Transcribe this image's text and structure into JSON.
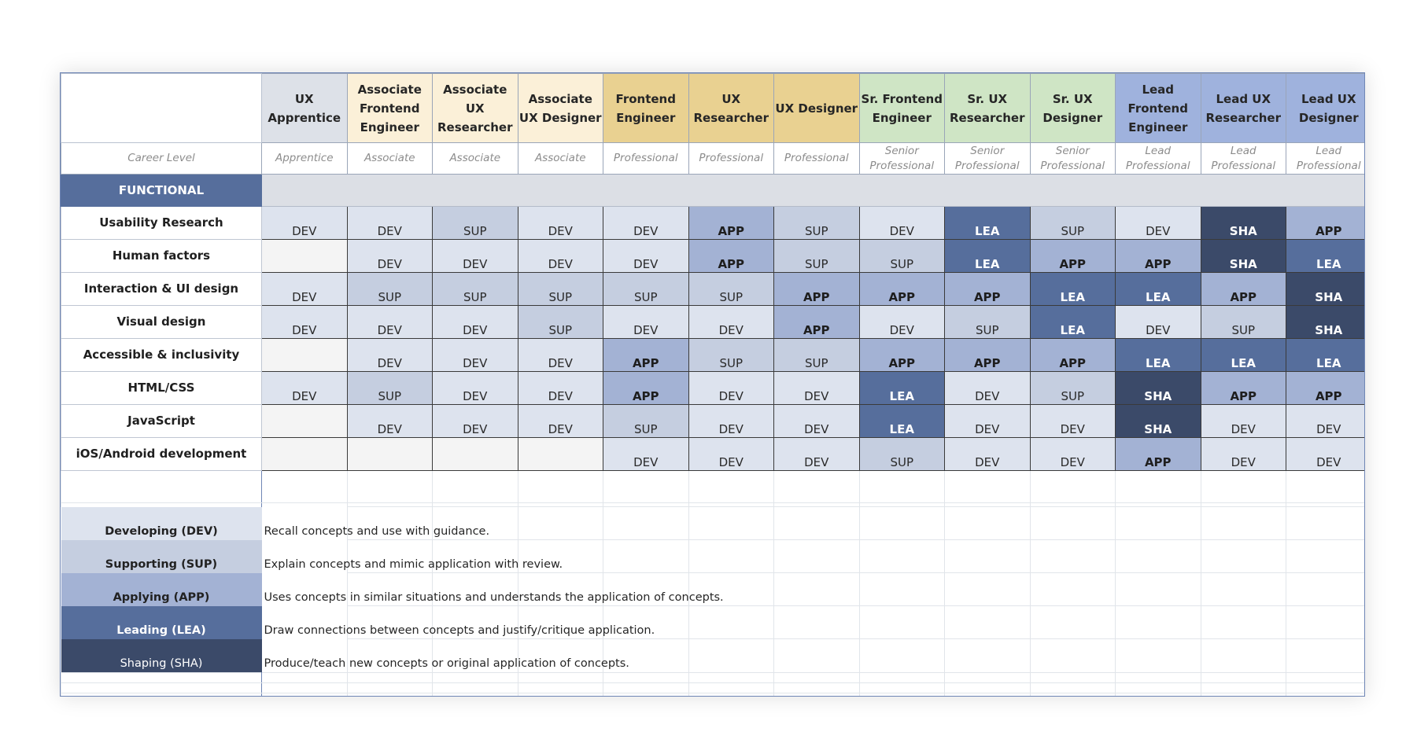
{
  "header": {
    "roles": [
      {
        "label": "UX Apprentice",
        "level": "Apprentice",
        "band": "app"
      },
      {
        "label": "Associate Frontend Engineer",
        "level": "Associate",
        "band": "ass"
      },
      {
        "label": "Associate UX Researcher",
        "level": "Associate",
        "band": "ass"
      },
      {
        "label": "Associate UX Designer",
        "level": "Associate",
        "band": "ass"
      },
      {
        "label": "Frontend Engineer",
        "level": "Professional",
        "band": "pro"
      },
      {
        "label": "UX Researcher",
        "level": "Professional",
        "band": "pro"
      },
      {
        "label": "UX Designer",
        "level": "Professional",
        "band": "pro"
      },
      {
        "label": "Sr. Frontend Engineer",
        "level": "Senior Professional",
        "band": "sen"
      },
      {
        "label": "Sr. UX Researcher",
        "level": "Senior Professional",
        "band": "sen"
      },
      {
        "label": "Sr. UX Designer",
        "level": "Senior Professional",
        "band": "sen"
      },
      {
        "label": "Lead Frontend Engineer",
        "level": "Lead Professional",
        "band": "lead"
      },
      {
        "label": "Lead UX Researcher",
        "level": "Lead Professional",
        "band": "lead"
      },
      {
        "label": "Lead UX Designer",
        "level": "Lead Professional",
        "band": "lead"
      }
    ],
    "level_label": "Career Level"
  },
  "section": {
    "label": "FUNCTIONAL"
  },
  "skills": [
    {
      "name": "Usability Research",
      "ratings": [
        "DEV",
        "DEV",
        "SUP",
        "DEV",
        "DEV",
        "APP",
        "SUP",
        "DEV",
        "LEA",
        "SUP",
        "DEV",
        "SHA",
        "APP"
      ]
    },
    {
      "name": "Human factors",
      "ratings": [
        "",
        "DEV",
        "DEV",
        "DEV",
        "DEV",
        "APP",
        "SUP",
        "SUP",
        "LEA",
        "APP",
        "APP",
        "SHA",
        "LEA"
      ]
    },
    {
      "name": "Interaction & UI design",
      "ratings": [
        "DEV",
        "SUP",
        "SUP",
        "SUP",
        "SUP",
        "SUP",
        "APP",
        "APP",
        "APP",
        "LEA",
        "LEA",
        "APP",
        "SHA"
      ]
    },
    {
      "name": "Visual design",
      "ratings": [
        "DEV",
        "DEV",
        "DEV",
        "SUP",
        "DEV",
        "DEV",
        "APP",
        "DEV",
        "SUP",
        "LEA",
        "DEV",
        "SUP",
        "SHA"
      ]
    },
    {
      "name": "Accessible & inclusivity",
      "ratings": [
        "",
        "DEV",
        "DEV",
        "DEV",
        "APP",
        "SUP",
        "SUP",
        "APP",
        "APP",
        "APP",
        "LEA",
        "LEA",
        "LEA"
      ]
    },
    {
      "name": "HTML/CSS",
      "ratings": [
        "DEV",
        "SUP",
        "DEV",
        "DEV",
        "APP",
        "DEV",
        "DEV",
        "LEA",
        "DEV",
        "SUP",
        "SHA",
        "APP",
        "APP"
      ]
    },
    {
      "name": "JavaScript",
      "ratings": [
        "",
        "DEV",
        "DEV",
        "DEV",
        "SUP",
        "DEV",
        "DEV",
        "LEA",
        "DEV",
        "DEV",
        "SHA",
        "DEV",
        "DEV"
      ]
    },
    {
      "name": "iOS/Android development",
      "ratings": [
        "",
        "",
        "",
        "",
        "DEV",
        "DEV",
        "DEV",
        "SUP",
        "DEV",
        "DEV",
        "APP",
        "DEV",
        "DEV"
      ]
    }
  ],
  "legend": [
    {
      "key": "DEV",
      "label": "Developing (DEV)",
      "description": "Recall concepts and use with guidance."
    },
    {
      "key": "SUP",
      "label": "Supporting (SUP)",
      "description": "Explain concepts and mimic application with review."
    },
    {
      "key": "APP",
      "label": "Applying (APP)",
      "description": "Uses concepts in similar situations and understands the application of concepts."
    },
    {
      "key": "LEA",
      "label": "Leading (LEA)",
      "description": "Draw connections between concepts and justify/critique application."
    },
    {
      "key": "SHA",
      "label": "Shaping (SHA)",
      "description": "Produce/teach new concepts or original application of concepts."
    }
  ]
}
